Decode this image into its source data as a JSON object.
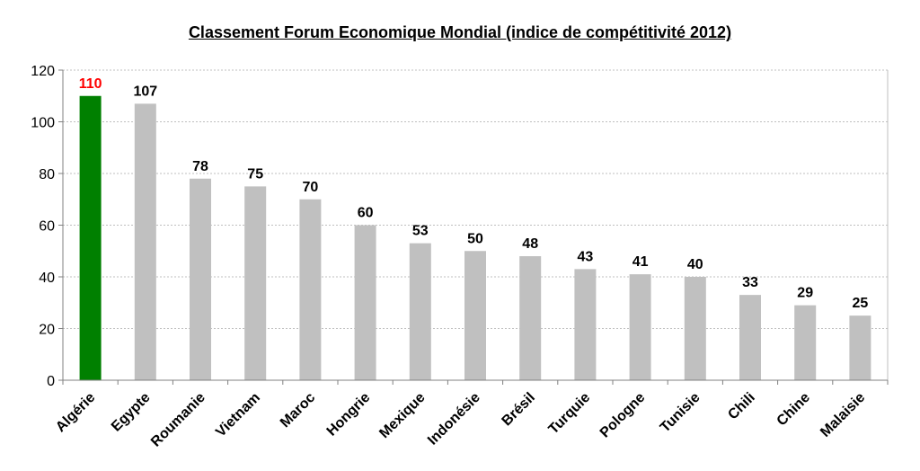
{
  "chart_data": {
    "type": "bar",
    "title": "Classement Forum Economique Mondial (indice de compétitivité 2012)",
    "categories": [
      "Algérie",
      "Egypte",
      "Roumanie",
      "Vietnam",
      "Maroc",
      "Hongrie",
      "Mexique",
      "Indonésie",
      "Brésil",
      "Turquie",
      "Pologne",
      "Tunisie",
      "Chili",
      "Chine",
      "Malaisie"
    ],
    "values": [
      110,
      107,
      78,
      75,
      70,
      60,
      53,
      50,
      48,
      43,
      41,
      40,
      33,
      29,
      25
    ],
    "ylim": [
      0,
      120
    ],
    "yticks": [
      0,
      20,
      40,
      60,
      80,
      100,
      120
    ],
    "grid": true,
    "legend": "none",
    "colors": {
      "highlight_bar": "#008000",
      "bar": "#c0c0c0",
      "highlight_label": "#ff0000",
      "label": "#000000",
      "grid": "#bfbfbf",
      "axis": "#808080"
    },
    "highlight_index": 0
  }
}
